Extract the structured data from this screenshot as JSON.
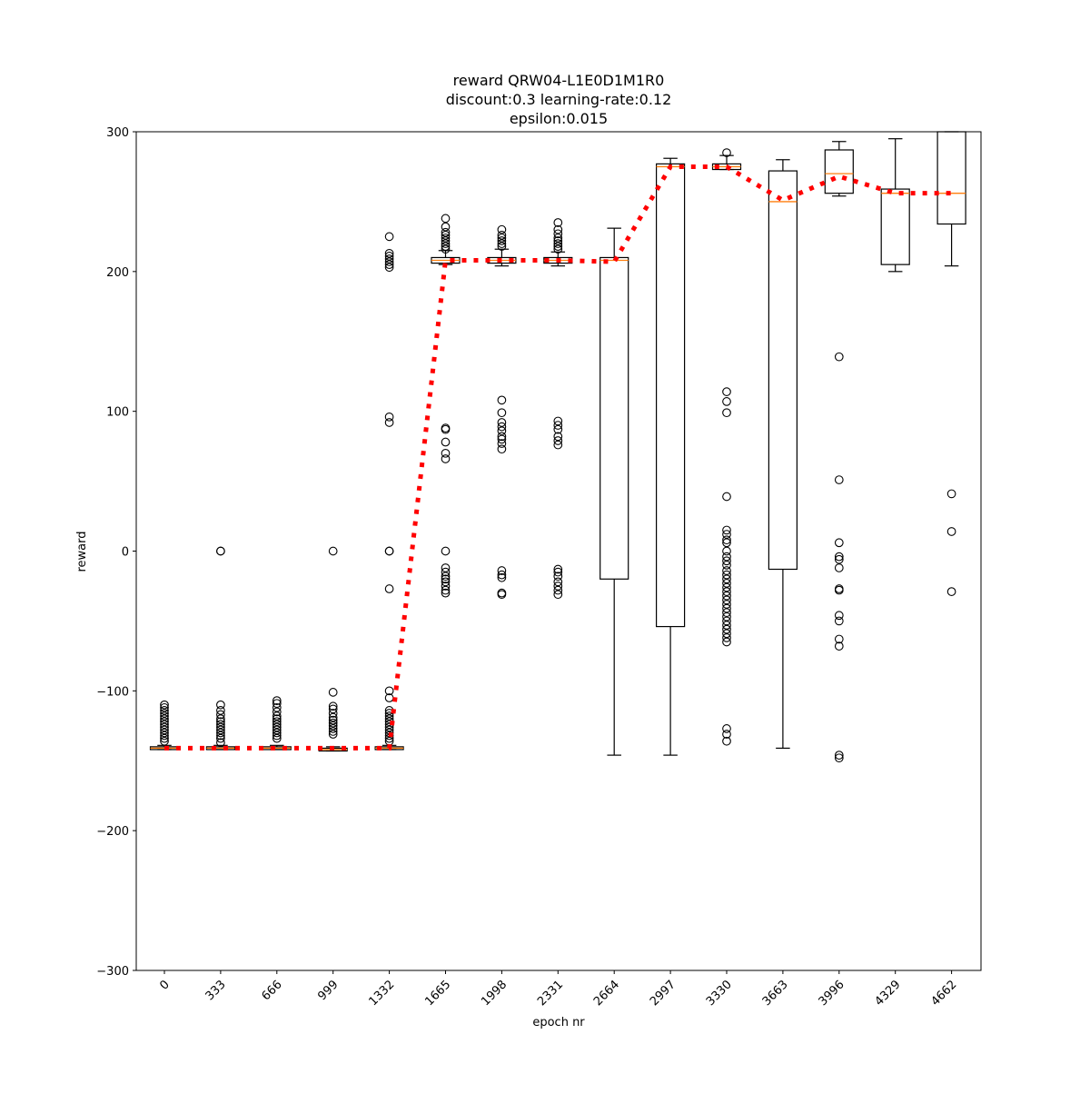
{
  "chart_data": {
    "type": "box",
    "title_lines": [
      "reward QRW04-L1E0D1M1R0",
      "discount:0.3 learning-rate:0.12",
      "epsilon:0.015"
    ],
    "xlabel": "epoch nr",
    "ylabel": "reward",
    "ylim": [
      -300,
      300
    ],
    "yticks": [
      -300,
      -200,
      -100,
      0,
      100,
      200,
      300
    ],
    "ytick_labels": [
      "−300",
      "−200",
      "−100",
      "0",
      "100",
      "200",
      "300"
    ],
    "categories": [
      "0",
      "333",
      "666",
      "999",
      "1332",
      "1665",
      "1998",
      "2331",
      "2664",
      "2997",
      "3330",
      "3663",
      "3996",
      "4329",
      "4662"
    ],
    "boxes": [
      {
        "whislo": -142,
        "q1": -142,
        "med": -141,
        "q3": -140,
        "whishi": -139,
        "fliers": [
          -110,
          -112,
          -114,
          -116,
          -118,
          -120,
          -122,
          -124,
          -126,
          -128,
          -130,
          -132,
          -134,
          -136
        ]
      },
      {
        "whislo": -142,
        "q1": -142,
        "med": -141,
        "q3": -140,
        "whishi": -139,
        "fliers": [
          0,
          0,
          -110,
          -114,
          -117,
          -120,
          -122,
          -124,
          -126,
          -128,
          -130,
          -132,
          -134,
          -137
        ]
      },
      {
        "whislo": -142,
        "q1": -142,
        "med": -141,
        "q3": -140,
        "whishi": -139,
        "fliers": [
          -107,
          -109,
          -112,
          -115,
          -118,
          -120,
          -122,
          -124,
          -126,
          -128,
          -130,
          -132,
          -134
        ]
      },
      {
        "whislo": -143,
        "q1": -143,
        "med": -142,
        "q3": -141,
        "whishi": -140,
        "fliers": [
          0,
          -101,
          -111,
          -113,
          -116,
          -119,
          -121,
          -123,
          -125,
          -127,
          -129,
          -131
        ]
      },
      {
        "whislo": -142,
        "q1": -142,
        "med": -141,
        "q3": -140,
        "whishi": -139,
        "fliers": [
          225,
          213,
          211,
          209,
          207,
          205,
          203,
          96,
          92,
          0,
          0,
          -27,
          -100,
          -105,
          -114,
          -116,
          -118,
          -120,
          -122,
          -124,
          -126,
          -128,
          -130,
          -132,
          -134,
          -136
        ]
      },
      {
        "whislo": 205,
        "q1": 206,
        "med": 208,
        "q3": 210,
        "whishi": 215,
        "fliers": [
          238,
          232,
          228,
          226,
          224,
          222,
          220,
          218,
          216,
          88,
          87,
          78,
          70,
          66,
          0,
          -12,
          -15,
          -18,
          -20,
          -22,
          -25,
          -28,
          -30
        ]
      },
      {
        "whislo": 204,
        "q1": 206,
        "med": 208,
        "q3": 210,
        "whishi": 216,
        "fliers": [
          230,
          226,
          224,
          222,
          220,
          218,
          108,
          99,
          92,
          89,
          86,
          82,
          80,
          77,
          73,
          -14,
          -17,
          -19,
          -30,
          -31
        ]
      },
      {
        "whislo": 204,
        "q1": 206,
        "med": 208,
        "q3": 210,
        "whishi": 214,
        "fliers": [
          235,
          230,
          227,
          224,
          222,
          220,
          218,
          216,
          93,
          90,
          87,
          82,
          79,
          76,
          -13,
          -15,
          -18,
          -22,
          -25,
          -28,
          -31
        ]
      },
      {
        "whislo": -146,
        "q1": -20,
        "med": 208,
        "q3": 210,
        "whishi": 231,
        "fliers": []
      },
      {
        "whislo": -146,
        "q1": -54,
        "med": 275,
        "q3": 277,
        "whishi": 281,
        "fliers": []
      },
      {
        "whislo": 273,
        "q1": 273,
        "med": 275,
        "q3": 277,
        "whishi": 283,
        "fliers": [
          285,
          114,
          107,
          99,
          39,
          15,
          12,
          8,
          6,
          0,
          -4,
          -7,
          -10,
          -14,
          -17,
          -20,
          -23,
          -26,
          -29,
          -32,
          -35,
          -38,
          -41,
          -44,
          -47,
          -50,
          -53,
          -56,
          -59,
          -62,
          -65,
          -127,
          -131,
          -136
        ]
      },
      {
        "whislo": -141,
        "q1": -13,
        "med": 250,
        "q3": 272,
        "whishi": 280,
        "fliers": []
      },
      {
        "whislo": 254,
        "q1": 256,
        "med": 270,
        "q3": 287,
        "whishi": 293,
        "fliers": [
          139,
          51,
          6,
          -4,
          -6,
          -12,
          -27,
          -28,
          -46,
          -50,
          -63,
          -68,
          -146,
          -148
        ]
      },
      {
        "whislo": 200,
        "q1": 205,
        "med": 256,
        "q3": 259,
        "whishi": 295,
        "fliers": []
      },
      {
        "whislo": 204,
        "q1": 234,
        "med": 256,
        "q3": 300,
        "whishi": 300,
        "fliers": [
          41,
          14,
          -29
        ]
      }
    ],
    "mean_line": {
      "color": "#ff0000",
      "style": "dotted",
      "values": [
        -141,
        -141,
        -141,
        -141,
        -141,
        208,
        208,
        208,
        207,
        275,
        275,
        251,
        268,
        256,
        256
      ]
    },
    "median_color": "#ff7f0e",
    "box_color": "#000000"
  }
}
